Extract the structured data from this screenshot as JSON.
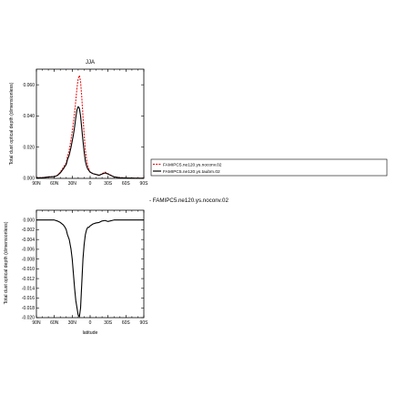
{
  "chart_data": [
    {
      "type": "line",
      "title": "JJA",
      "xlabel": "",
      "ylabel": "Total dust optical depth (dimensionless)",
      "xlim": [
        90,
        -90
      ],
      "ylim": [
        0,
        0.07
      ],
      "x_tick_labels": [
        "90N",
        "60N",
        "30N",
        "0",
        "30S",
        "60S",
        "90S"
      ],
      "x_tick_values": [
        90,
        60,
        30,
        0,
        -30,
        -60,
        -90
      ],
      "y_tick_labels": [
        "0.000",
        "0.020",
        "0.040",
        "0.060"
      ],
      "y_tick_values": [
        0,
        0.02,
        0.04,
        0.06
      ],
      "legend_position": "right",
      "series": [
        {
          "name": "FAMIPC5.ne120.ys.noconv.02",
          "color": "#e31a1c",
          "style": "dashed",
          "x": [
            90,
            80,
            70,
            60,
            55,
            50,
            45,
            40,
            38,
            35,
            32,
            30,
            28,
            26,
            24,
            22,
            20,
            18,
            16,
            14,
            12,
            10,
            8,
            6,
            4,
            2,
            0,
            -5,
            -10,
            -15,
            -20,
            -25,
            -30,
            -35,
            -40,
            -50,
            -60,
            -70,
            -80,
            -90
          ],
          "y": [
            0.0005,
            0.0005,
            0.001,
            0.0012,
            0.002,
            0.004,
            0.007,
            0.01,
            0.014,
            0.018,
            0.025,
            0.03,
            0.036,
            0.042,
            0.05,
            0.058,
            0.064,
            0.066,
            0.062,
            0.052,
            0.04,
            0.028,
            0.018,
            0.012,
            0.008,
            0.006,
            0.004,
            0.003,
            0.0025,
            0.002,
            0.003,
            0.004,
            0.003,
            0.002,
            0.001,
            0.0005,
            0.0003,
            0.0002,
            0.0001,
            0.0001
          ]
        },
        {
          "name": "FAMIPC5.ne120.ys.taubm.02",
          "color": "#000000",
          "style": "solid",
          "x": [
            90,
            80,
            70,
            60,
            55,
            50,
            45,
            40,
            38,
            35,
            32,
            30,
            28,
            26,
            24,
            22,
            20,
            18,
            16,
            14,
            12,
            10,
            8,
            6,
            4,
            2,
            0,
            -5,
            -10,
            -15,
            -20,
            -25,
            -30,
            -35,
            -40,
            -50,
            -60,
            -70,
            -80,
            -90
          ],
          "y": [
            0.0004,
            0.0004,
            0.0009,
            0.0011,
            0.0018,
            0.0035,
            0.006,
            0.009,
            0.012,
            0.015,
            0.02,
            0.024,
            0.028,
            0.033,
            0.039,
            0.044,
            0.046,
            0.045,
            0.04,
            0.032,
            0.024,
            0.017,
            0.011,
            0.008,
            0.006,
            0.005,
            0.004,
            0.003,
            0.0025,
            0.002,
            0.0028,
            0.0035,
            0.0028,
            0.0018,
            0.001,
            0.0004,
            0.0003,
            0.0002,
            0.0001,
            0.0001
          ]
        }
      ]
    },
    {
      "type": "line",
      "title": "",
      "annotation": "- FAMIPC5.ne120.ys.noconv.02",
      "xlabel": "latitude",
      "ylabel": "Total dust optical depth (dimensionless)",
      "xlim": [
        90,
        -90
      ],
      "ylim": [
        -0.02,
        0.002
      ],
      "x_tick_labels": [
        "90N",
        "60N",
        "30N",
        "0",
        "30S",
        "60S",
        "90S"
      ],
      "x_tick_values": [
        90,
        60,
        30,
        0,
        -30,
        -60,
        -90
      ],
      "y_tick_labels": [
        "0.000",
        "-0.002",
        "-0.004",
        "-0.006",
        "-0.008",
        "-0.010",
        "-0.012",
        "-0.014",
        "-0.016",
        "-0.018",
        "-0.020"
      ],
      "y_tick_values": [
        0,
        -0.002,
        -0.004,
        -0.006,
        -0.008,
        -0.01,
        -0.012,
        -0.014,
        -0.016,
        -0.018,
        -0.02
      ],
      "series": [
        {
          "color": "#000000",
          "style": "solid",
          "x": [
            90,
            80,
            70,
            60,
            55,
            50,
            45,
            42,
            40,
            38,
            35,
            32,
            30,
            28,
            26,
            24,
            22,
            20,
            18,
            16,
            14,
            12,
            10,
            8,
            6,
            4,
            2,
            0,
            -5,
            -10,
            -15,
            -20,
            -25,
            -30,
            -40,
            -50,
            -60,
            -70,
            -80,
            -90
          ],
          "y": [
            0.0,
            0.0,
            0.0,
            0.0,
            -0.0002,
            -0.0005,
            -0.001,
            -0.0015,
            -0.002,
            -0.003,
            -0.004,
            -0.006,
            -0.008,
            -0.011,
            -0.014,
            -0.0165,
            -0.018,
            -0.0195,
            -0.0198,
            -0.018,
            -0.013,
            -0.008,
            -0.005,
            -0.003,
            -0.002,
            -0.0015,
            -0.0015,
            -0.0012,
            -0.0008,
            -0.0006,
            -0.0005,
            -0.0002,
            -0.0001,
            -0.0003,
            0.0,
            0.0,
            0.0,
            0.0,
            0.0,
            0.0
          ]
        }
      ]
    }
  ]
}
